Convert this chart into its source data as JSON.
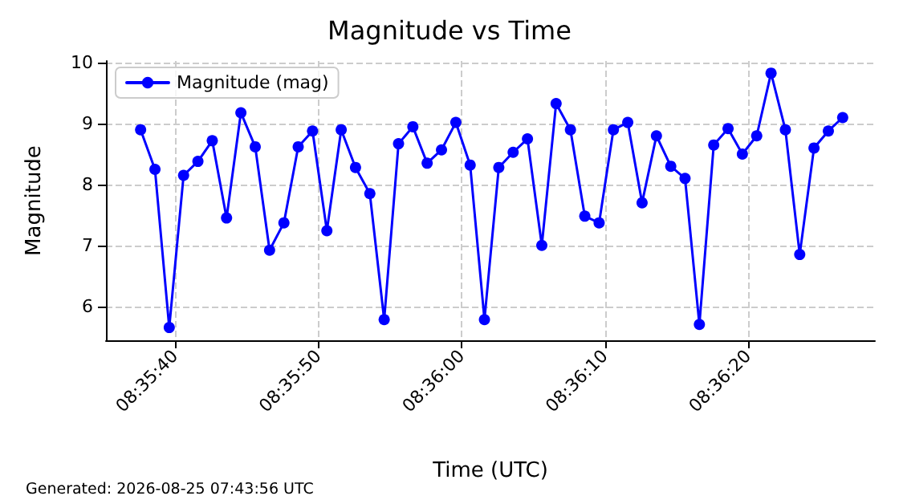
{
  "chart_data": {
    "type": "line",
    "title": "Magnitude vs Time",
    "xlabel": "Time (UTC)",
    "ylabel": "Magnitude",
    "x": [
      8.593778,
      8.594056,
      8.594333,
      8.594611,
      8.594889,
      8.595167,
      8.595444,
      8.595722,
      8.596,
      8.596278,
      8.596556,
      8.596833,
      8.597111,
      8.597389,
      8.597667,
      8.597944,
      8.598222,
      8.5985,
      8.598778,
      8.599056,
      8.599333,
      8.599611,
      8.599889,
      8.600167,
      8.600444,
      8.600722,
      8.601,
      8.601278,
      8.601556,
      8.601833,
      8.602111,
      8.602389,
      8.602667,
      8.602944,
      8.603222,
      8.6035,
      8.603778,
      8.604056,
      8.604333,
      8.604611,
      8.604889,
      8.605167,
      8.605444,
      8.605722,
      8.606,
      8.606278,
      8.606556,
      8.606833,
      8.607111,
      8.607389
    ],
    "series": [
      {
        "name": "Magnitude (mag)",
        "color": "#0000ff",
        "values": [
          8.9,
          8.25,
          5.65,
          8.15,
          8.38,
          8.72,
          7.45,
          9.18,
          8.62,
          6.92,
          7.37,
          8.62,
          8.88,
          7.24,
          8.9,
          8.28,
          7.85,
          5.78,
          8.67,
          8.95,
          8.35,
          8.57,
          9.02,
          8.32,
          5.78,
          8.28,
          8.53,
          8.75,
          7.0,
          9.33,
          8.9,
          7.48,
          7.37,
          8.9,
          9.02,
          7.7,
          8.8,
          8.3,
          8.1,
          5.7,
          8.65,
          8.92,
          8.5,
          8.8,
          9.83,
          8.9,
          6.85,
          8.6,
          8.88,
          9.1
        ]
      }
    ],
    "xlim": [
      8.593106,
      8.608014
    ],
    "xticks": [
      {
        "value": 8.594444,
        "label": "08:35:40"
      },
      {
        "value": 8.597222,
        "label": "08:35:50"
      },
      {
        "value": 8.6,
        "label": "08:36:00"
      },
      {
        "value": 8.602778,
        "label": "08:36:10"
      },
      {
        "value": 8.605556,
        "label": "08:36:20"
      }
    ],
    "ylim": [
      5.44,
      10.03
    ],
    "yticks": [
      6,
      7,
      8,
      9,
      10
    ],
    "grid": true,
    "legend": "top left",
    "marker": "circle",
    "line_style": "solid",
    "annotations": [
      "Generated: 2026-08-25 07:43:56 UTC"
    ]
  }
}
